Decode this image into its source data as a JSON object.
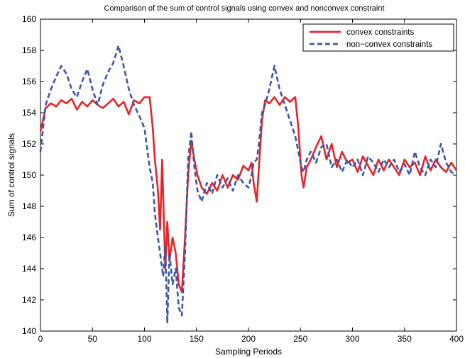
{
  "chart_data": {
    "type": "line",
    "title": "Comparison of the sum of control signals using convex and nonconvex constraint",
    "xlabel": "Sampling Periods",
    "ylabel": "Sum of control signals",
    "xlim": [
      0,
      400
    ],
    "ylim": [
      140,
      160
    ],
    "xticks": [
      0,
      50,
      100,
      150,
      200,
      250,
      300,
      350,
      400
    ],
    "yticks": [
      140,
      142,
      144,
      146,
      148,
      150,
      152,
      154,
      156,
      158,
      160
    ],
    "grid": false,
    "legend_position": "top-right",
    "series": [
      {
        "name": "convex constraints",
        "color": "#e8232a",
        "style": "solid",
        "points": [
          [
            0,
            152.8
          ],
          [
            5,
            154.3
          ],
          [
            10,
            154.6
          ],
          [
            15,
            154.4
          ],
          [
            20,
            154.8
          ],
          [
            25,
            154.6
          ],
          [
            30,
            154.9
          ],
          [
            35,
            154.2
          ],
          [
            40,
            154.7
          ],
          [
            45,
            154.4
          ],
          [
            50,
            154.8
          ],
          [
            55,
            154.5
          ],
          [
            60,
            154.3
          ],
          [
            65,
            154.6
          ],
          [
            70,
            154.9
          ],
          [
            75,
            154.4
          ],
          [
            80,
            154.7
          ],
          [
            85,
            153.9
          ],
          [
            90,
            154.8
          ],
          [
            95,
            154.6
          ],
          [
            100,
            155.0
          ],
          [
            105,
            155.0
          ],
          [
            108,
            153.0
          ],
          [
            110,
            151.0
          ],
          [
            113,
            149.0
          ],
          [
            115,
            146.5
          ],
          [
            117,
            151.0
          ],
          [
            120,
            144.0
          ],
          [
            122,
            147.0
          ],
          [
            124,
            144.5
          ],
          [
            127,
            146.0
          ],
          [
            130,
            145.0
          ],
          [
            133,
            143.0
          ],
          [
            136,
            142.5
          ],
          [
            139,
            146.0
          ],
          [
            142,
            150.0
          ],
          [
            145,
            152.2
          ],
          [
            148,
            151.0
          ],
          [
            151,
            150.0
          ],
          [
            155,
            149.2
          ],
          [
            160,
            148.8
          ],
          [
            165,
            149.5
          ],
          [
            170,
            149.0
          ],
          [
            175,
            150.0
          ],
          [
            180,
            149.2
          ],
          [
            185,
            150.0
          ],
          [
            190,
            149.7
          ],
          [
            195,
            150.6
          ],
          [
            200,
            150.3
          ],
          [
            203,
            150.8
          ],
          [
            205,
            149.5
          ],
          [
            208,
            148.3
          ],
          [
            210,
            150.5
          ],
          [
            213,
            153.5
          ],
          [
            216,
            154.8
          ],
          [
            220,
            154.6
          ],
          [
            225,
            155.0
          ],
          [
            230,
            154.5
          ],
          [
            235,
            155.0
          ],
          [
            240,
            154.7
          ],
          [
            245,
            155.0
          ],
          [
            248,
            153.0
          ],
          [
            251,
            150.0
          ],
          [
            253,
            149.2
          ],
          [
            256,
            150.5
          ],
          [
            260,
            151.0
          ],
          [
            265,
            151.8
          ],
          [
            270,
            152.5
          ],
          [
            275,
            151.0
          ],
          [
            280,
            152.0
          ],
          [
            285,
            150.5
          ],
          [
            290,
            151.5
          ],
          [
            295,
            150.8
          ],
          [
            300,
            151.0
          ],
          [
            305,
            150.2
          ],
          [
            310,
            151.2
          ],
          [
            315,
            150.6
          ],
          [
            320,
            150.0
          ],
          [
            325,
            151.0
          ],
          [
            330,
            150.3
          ],
          [
            335,
            151.0
          ],
          [
            340,
            150.5
          ],
          [
            345,
            150.0
          ],
          [
            350,
            151.0
          ],
          [
            355,
            150.5
          ],
          [
            360,
            150.8
          ],
          [
            365,
            150.0
          ],
          [
            370,
            151.2
          ],
          [
            375,
            150.3
          ],
          [
            380,
            151.0
          ],
          [
            385,
            150.5
          ],
          [
            390,
            150.2
          ],
          [
            395,
            150.8
          ],
          [
            400,
            150.3
          ]
        ]
      },
      {
        "name": "non−convex constraints",
        "color": "#3a57a7",
        "style": "dashed",
        "points": [
          [
            0,
            151.5
          ],
          [
            5,
            154.5
          ],
          [
            10,
            155.5
          ],
          [
            15,
            156.3
          ],
          [
            20,
            157.0
          ],
          [
            25,
            156.5
          ],
          [
            30,
            155.5
          ],
          [
            35,
            155.0
          ],
          [
            40,
            156.0
          ],
          [
            45,
            156.8
          ],
          [
            50,
            155.5
          ],
          [
            55,
            154.5
          ],
          [
            60,
            155.8
          ],
          [
            65,
            156.6
          ],
          [
            70,
            157.2
          ],
          [
            75,
            158.3
          ],
          [
            80,
            157.0
          ],
          [
            85,
            155.5
          ],
          [
            90,
            154.5
          ],
          [
            95,
            153.8
          ],
          [
            100,
            153.0
          ],
          [
            105,
            150.5
          ],
          [
            108,
            149.5
          ],
          [
            110,
            147.5
          ],
          [
            113,
            146.0
          ],
          [
            115,
            145.0
          ],
          [
            118,
            143.5
          ],
          [
            120,
            145.5
          ],
          [
            122,
            140.5
          ],
          [
            124,
            145.0
          ],
          [
            127,
            143.0
          ],
          [
            130,
            144.0
          ],
          [
            133,
            141.5
          ],
          [
            136,
            141.0
          ],
          [
            139,
            145.0
          ],
          [
            142,
            151.0
          ],
          [
            145,
            152.8
          ],
          [
            148,
            150.5
          ],
          [
            151,
            149.0
          ],
          [
            155,
            148.3
          ],
          [
            160,
            149.5
          ],
          [
            165,
            148.8
          ],
          [
            170,
            150.0
          ],
          [
            175,
            149.2
          ],
          [
            180,
            149.8
          ],
          [
            185,
            149.0
          ],
          [
            190,
            150.0
          ],
          [
            195,
            149.5
          ],
          [
            200,
            149.2
          ],
          [
            203,
            150.0
          ],
          [
            205,
            150.8
          ],
          [
            208,
            151.0
          ],
          [
            210,
            152.0
          ],
          [
            213,
            154.0
          ],
          [
            216,
            154.5
          ],
          [
            220,
            155.5
          ],
          [
            225,
            157.0
          ],
          [
            230,
            155.5
          ],
          [
            235,
            154.5
          ],
          [
            240,
            153.5
          ],
          [
            245,
            152.5
          ],
          [
            248,
            151.5
          ],
          [
            251,
            150.5
          ],
          [
            253,
            150.2
          ],
          [
            256,
            151.0
          ],
          [
            260,
            151.5
          ],
          [
            265,
            150.8
          ],
          [
            270,
            151.8
          ],
          [
            275,
            152.0
          ],
          [
            280,
            150.5
          ],
          [
            285,
            151.0
          ],
          [
            290,
            150.2
          ],
          [
            295,
            151.0
          ],
          [
            300,
            150.5
          ],
          [
            305,
            151.0
          ],
          [
            310,
            150.0
          ],
          [
            315,
            151.2
          ],
          [
            320,
            150.8
          ],
          [
            325,
            150.2
          ],
          [
            330,
            151.0
          ],
          [
            335,
            150.5
          ],
          [
            340,
            151.0
          ],
          [
            345,
            150.2
          ],
          [
            350,
            150.7
          ],
          [
            355,
            150.0
          ],
          [
            360,
            151.5
          ],
          [
            365,
            150.5
          ],
          [
            370,
            150.0
          ],
          [
            375,
            151.0
          ],
          [
            380,
            150.5
          ],
          [
            385,
            152.0
          ],
          [
            390,
            150.8
          ],
          [
            395,
            150.2
          ],
          [
            400,
            150.0
          ]
        ]
      }
    ]
  }
}
